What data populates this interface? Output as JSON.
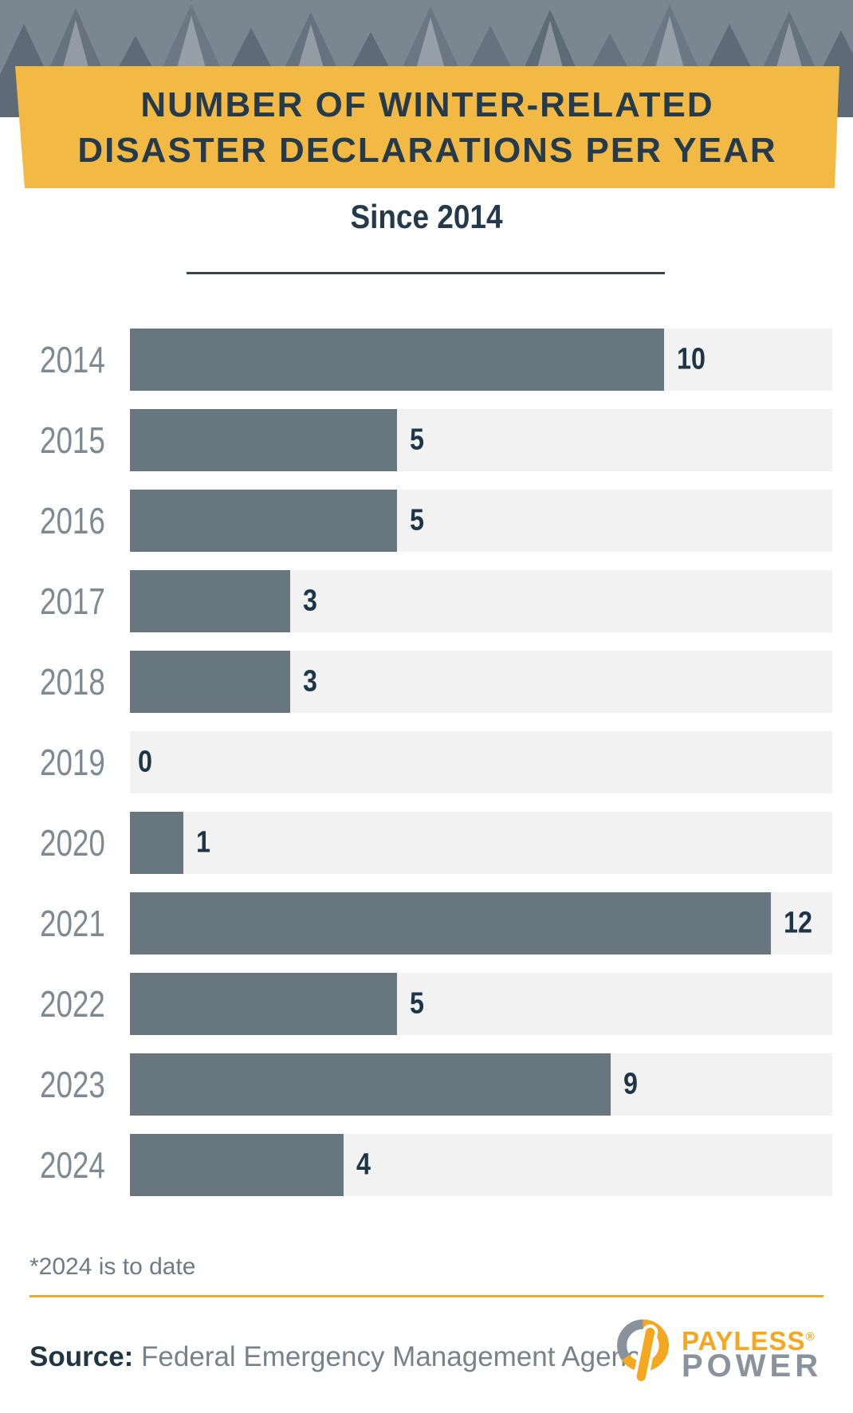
{
  "header": {
    "title_line1": "NUMBER OF WINTER-RELATED",
    "title_line2": "DISASTER DECLARATIONS PER YEAR",
    "subtitle": "Since 2014"
  },
  "chart_data": {
    "type": "bar",
    "orientation": "horizontal",
    "title": "Number of Winter-Related Disaster Declarations Per Year",
    "subtitle": "Since 2014",
    "categories": [
      "2014",
      "2015",
      "2016",
      "2017",
      "2018",
      "2019",
      "2020",
      "2021",
      "2022",
      "2023",
      "2024"
    ],
    "values": [
      10,
      5,
      5,
      3,
      3,
      0,
      1,
      12,
      5,
      9,
      4
    ],
    "xlim": [
      0,
      13.15
    ],
    "grid": false,
    "legend": false,
    "bar_color": "#687680",
    "track_color": "#F2F2F2",
    "year_label_color": "#7E8992",
    "value_label_color": "#1C3648"
  },
  "footnote": "*2024 is to date",
  "source": {
    "label": "Source:",
    "text": " Federal Emergency Management Agency"
  },
  "logo": {
    "line1": "PAYLESS",
    "registered": "®",
    "line2": "POWER",
    "orange": "#F5A71F",
    "gray": "#8A939B"
  },
  "colors": {
    "banner_background": "#F2BA45",
    "title_text": "#253B4B",
    "divider": "#39444E",
    "footer_rule": "#F7A81C",
    "footnote_text": "#6F7A83",
    "source_text": "#77828B",
    "hero_background": "#7A8690"
  }
}
